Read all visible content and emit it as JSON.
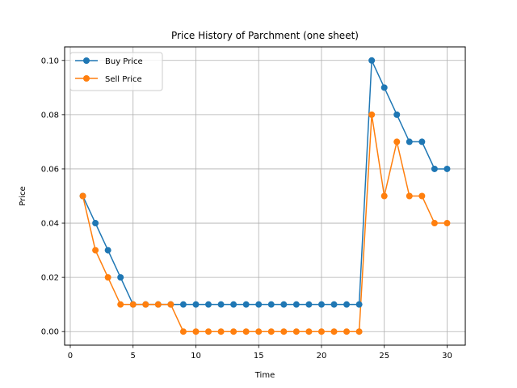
{
  "chart_data": {
    "type": "line",
    "title": "Price History of Parchment (one sheet)",
    "xlabel": "Time",
    "ylabel": "Price",
    "xlim": [
      -0.45,
      31.45
    ],
    "ylim": [
      -0.005,
      0.105
    ],
    "x_ticks": [
      0,
      5,
      10,
      15,
      20,
      25,
      30
    ],
    "x_tick_labels": [
      "0",
      "5",
      "10",
      "15",
      "20",
      "25",
      "30"
    ],
    "y_ticks": [
      0.0,
      0.02,
      0.04,
      0.06,
      0.08,
      0.1
    ],
    "y_tick_labels": [
      "0.00",
      "0.02",
      "0.04",
      "0.06",
      "0.08",
      "0.10"
    ],
    "grid": true,
    "legend_position": "top-left",
    "x": [
      1,
      2,
      3,
      4,
      5,
      6,
      7,
      8,
      9,
      10,
      11,
      12,
      13,
      14,
      15,
      16,
      17,
      18,
      19,
      20,
      21,
      22,
      23,
      24,
      25,
      26,
      27,
      28,
      29,
      30
    ],
    "series": [
      {
        "name": "Buy Price",
        "color": "#1f77b4",
        "values": [
          0.05,
          0.04,
          0.03,
          0.02,
          0.01,
          0.01,
          0.01,
          0.01,
          0.01,
          0.01,
          0.01,
          0.01,
          0.01,
          0.01,
          0.01,
          0.01,
          0.01,
          0.01,
          0.01,
          0.01,
          0.01,
          0.01,
          0.01,
          0.1,
          0.09,
          0.08,
          0.07,
          0.07,
          0.06,
          0.06
        ]
      },
      {
        "name": "Sell Price",
        "color": "#ff7f0e",
        "values": [
          0.05,
          0.03,
          0.02,
          0.01,
          0.01,
          0.01,
          0.01,
          0.01,
          0.0,
          0.0,
          0.0,
          0.0,
          0.0,
          0.0,
          0.0,
          0.0,
          0.0,
          0.0,
          0.0,
          0.0,
          0.0,
          0.0,
          0.0,
          0.08,
          0.05,
          0.07,
          0.05,
          0.05,
          0.04,
          0.04
        ]
      }
    ]
  }
}
